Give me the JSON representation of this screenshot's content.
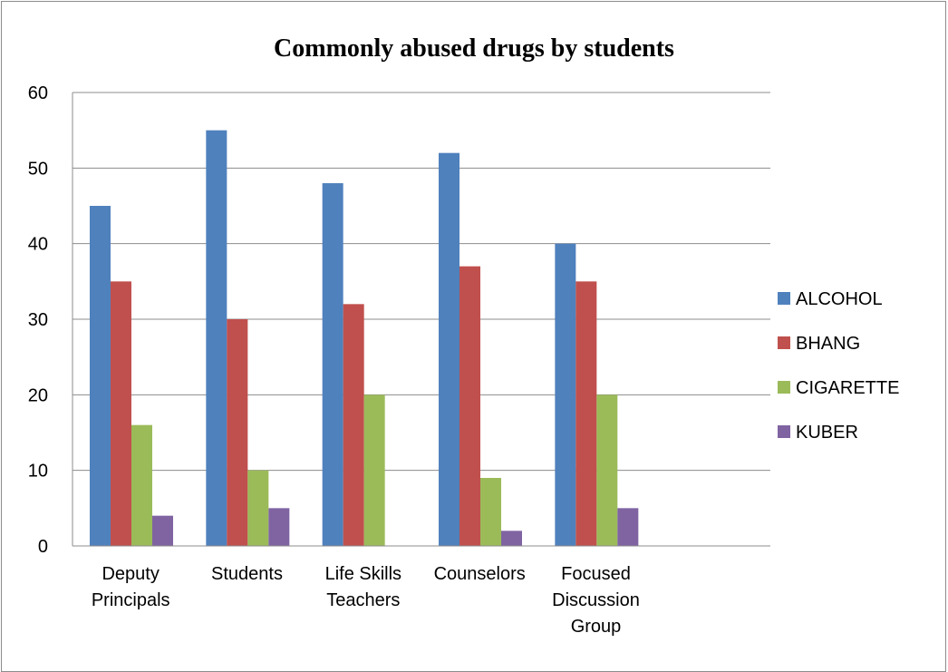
{
  "chart_data": {
    "type": "bar",
    "title": "Commonly abused drugs by students",
    "xlabel": "",
    "ylabel": "",
    "ylim": [
      0,
      60
    ],
    "yticks": [
      0,
      10,
      20,
      30,
      40,
      50,
      60
    ],
    "grid": true,
    "legend_position": "right",
    "categories": [
      [
        "Deputy",
        "Principals"
      ],
      [
        "Students"
      ],
      [
        "Life Skills",
        "Teachers"
      ],
      [
        "Counselors"
      ],
      [
        "Focused",
        "Discussion",
        "Group"
      ]
    ],
    "series": [
      {
        "name": "ALCOHOL",
        "color": "#4f81bd",
        "values": [
          45,
          55,
          48,
          52,
          40
        ]
      },
      {
        "name": "BHANG",
        "color": "#c0504d",
        "values": [
          35,
          30,
          32,
          37,
          35
        ]
      },
      {
        "name": "CIGARETTE",
        "color": "#9bbb59",
        "values": [
          16,
          10,
          20,
          9,
          20
        ]
      },
      {
        "name": "KUBER",
        "color": "#8064a2",
        "values": [
          4,
          5,
          0,
          2,
          5
        ]
      }
    ]
  }
}
